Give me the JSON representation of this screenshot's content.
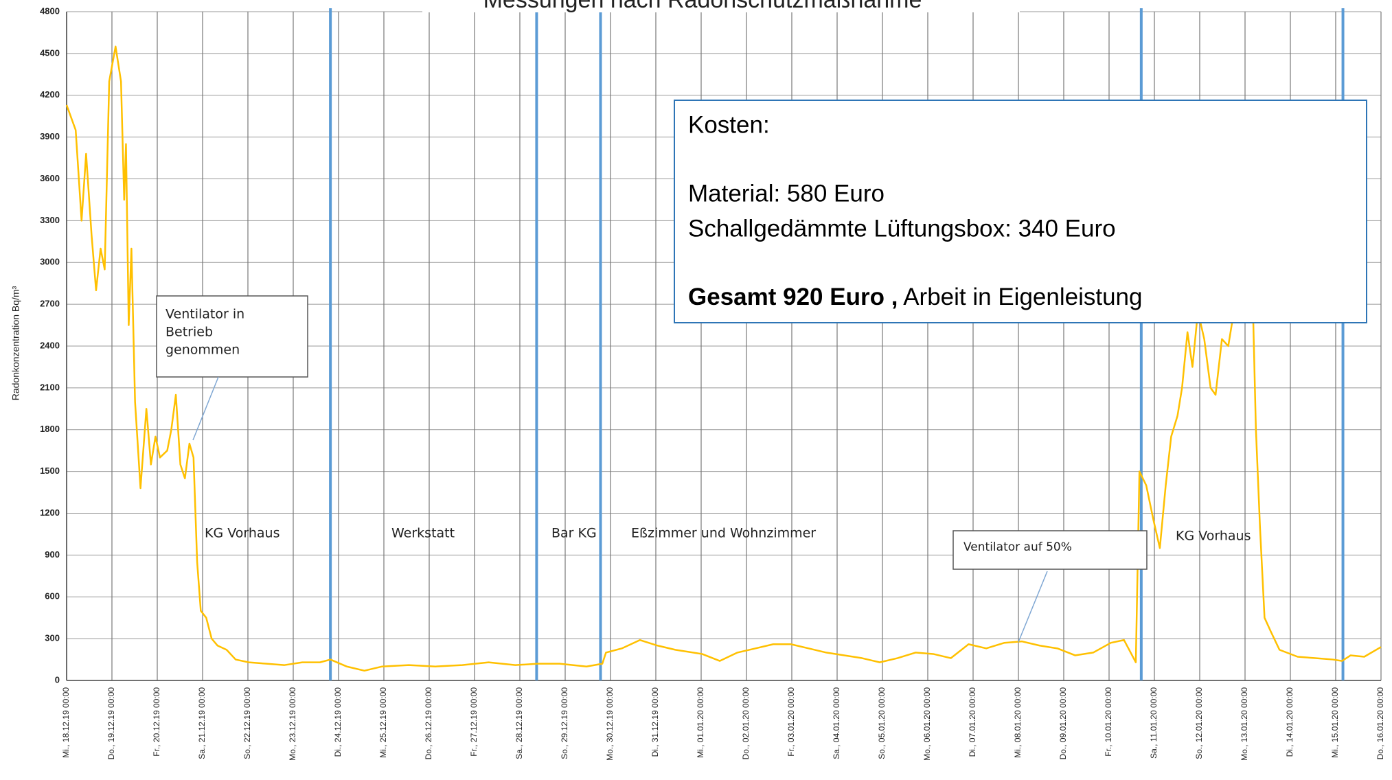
{
  "chart_data": {
    "type": "line",
    "title": "Messungen nach Radonschutzmaßnahme",
    "y_label": "Radonkonzentration Bq/m³",
    "xlim": [
      0,
      29
    ],
    "xticks": [
      {
        "value": 0,
        "label": "Mi., 18.12.19 00:00"
      },
      {
        "value": 1,
        "label": "Do., 19.12.19 00:00"
      },
      {
        "value": 2,
        "label": "Fr., 20.12.19 00:00"
      },
      {
        "value": 3,
        "label": "Sa., 21.12.19 00:00"
      },
      {
        "value": 4,
        "label": "So., 22.12.19 00:00"
      },
      {
        "value": 5,
        "label": "Mo., 23.12.19 00:00"
      },
      {
        "value": 6,
        "label": "Di., 24.12.19 00:00"
      },
      {
        "value": 7,
        "label": "Mi., 25.12.19 00:00"
      },
      {
        "value": 8,
        "label": "Do., 26.12.19 00:00"
      },
      {
        "value": 9,
        "label": "Fr., 27.12.19 00:00"
      },
      {
        "value": 10,
        "label": "Sa., 28.12.19 00:00"
      },
      {
        "value": 11,
        "label": "So., 29.12.19 00:00"
      },
      {
        "value": 12,
        "label": "Mo., 30.12.19 00:00"
      },
      {
        "value": 13,
        "label": "Di., 31.12.19 00:00"
      },
      {
        "value": 14,
        "label": "Mi., 01.01.20 00:00"
      },
      {
        "value": 15,
        "label": "Do., 02.01.20 00:00"
      },
      {
        "value": 16,
        "label": "Fr., 03.01.20 00:00"
      },
      {
        "value": 17,
        "label": "Sa., 04.01.20 00:00"
      },
      {
        "value": 18,
        "label": "So., 05.01.20 00:00"
      },
      {
        "value": 19,
        "label": "Mo., 06.01.20 00:00"
      },
      {
        "value": 20,
        "label": "Di., 07.01.20 00:00"
      },
      {
        "value": 21,
        "label": "Mi., 08.01.20 00:00"
      },
      {
        "value": 22,
        "label": "Do., 09.01.20 00:00"
      },
      {
        "value": 23,
        "label": "Fr., 10.01.20 00:00"
      },
      {
        "value": 24,
        "label": "Sa., 11.01.20 00:00"
      },
      {
        "value": 25,
        "label": "So., 12.01.20 00:00"
      },
      {
        "value": 26,
        "label": "Mo., 13.01.20 00:00"
      },
      {
        "value": 27,
        "label": "Di., 14.01.20 00:00"
      },
      {
        "value": 28,
        "label": "Mi., 15.01.20 00:00"
      },
      {
        "value": 29,
        "label": "Do., 16.01.20 00:00"
      }
    ],
    "ylim": [
      0,
      4800
    ],
    "yticks": [
      0,
      300,
      600,
      900,
      1200,
      1500,
      1800,
      2100,
      2400,
      2700,
      3000,
      3300,
      3600,
      3900,
      4200,
      4500,
      4800
    ],
    "grid": true,
    "series": [
      {
        "color": "#ffc000",
        "x": [
          0,
          0.2,
          0.33,
          0.43,
          0.55,
          0.65,
          0.75,
          0.84,
          0.94,
          1.08,
          1.2,
          1.27,
          1.31,
          1.37,
          1.43,
          1.51,
          1.63,
          1.76,
          1.86,
          1.96,
          2.06,
          2.22,
          2.31,
          2.41,
          2.51,
          2.61,
          2.71,
          2.8,
          2.88,
          2.96,
          3.08,
          3.2,
          3.33,
          3.53,
          3.73,
          4.02,
          4.41,
          4.8,
          5.2,
          5.59,
          5.82,
          6.18,
          6.57,
          6.96,
          7.55,
          8.14,
          8.73,
          9.31,
          9.9,
          10.39,
          10.88,
          11.47,
          11.82,
          11.9,
          12.25,
          12.65,
          13.04,
          13.43,
          14.02,
          14.41,
          14.8,
          15.2,
          15.59,
          15.98,
          16.37,
          16.76,
          17.16,
          17.55,
          17.94,
          18.33,
          18.73,
          19.12,
          19.51,
          19.9,
          20.29,
          20.69,
          21.08,
          21.47,
          21.86,
          22.25,
          22.65,
          23.04,
          23.33,
          23.59,
          23.67,
          23.82,
          23.98,
          24.12,
          24.25,
          24.37,
          24.51,
          24.61,
          24.73,
          24.84,
          24.96,
          25.1,
          25.24,
          25.35,
          25.49,
          25.63,
          25.73,
          26.18,
          26.24,
          26.33,
          26.43,
          26.57,
          26.76,
          27.16,
          27.55,
          27.94,
          28.14,
          28.33,
          28.63,
          29
        ],
        "values": [
          4130,
          3950,
          3300,
          3780,
          3200,
          2800,
          3100,
          2950,
          4300,
          4550,
          4300,
          3450,
          3850,
          2550,
          3100,
          2000,
          1380,
          1950,
          1550,
          1750,
          1600,
          1650,
          1800,
          2050,
          1550,
          1450,
          1700,
          1600,
          850,
          500,
          450,
          300,
          250,
          220,
          150,
          130,
          120,
          110,
          130,
          130,
          150,
          100,
          70,
          100,
          110,
          100,
          110,
          130,
          110,
          120,
          120,
          100,
          120,
          200,
          230,
          290,
          250,
          220,
          190,
          140,
          200,
          230,
          260,
          260,
          230,
          200,
          180,
          160,
          130,
          160,
          200,
          190,
          160,
          260,
          230,
          270,
          280,
          250,
          230,
          180,
          200,
          270,
          290,
          130,
          1500,
          1400,
          1150,
          950,
          1400,
          1750,
          1900,
          2100,
          2500,
          2250,
          2650,
          2450,
          2100,
          2050,
          2450,
          2400,
          2600,
          2600,
          1800,
          1100,
          450,
          350,
          220,
          170,
          160,
          150,
          140,
          180,
          170,
          240
        ]
      }
    ],
    "markers": {
      "color": "#5b9bd5",
      "x": [
        5.82,
        10.37,
        11.78,
        23.71,
        28.16
      ]
    },
    "annotations": [
      "KG Vorhaus",
      "Werkstatt",
      "Bar KG",
      "Eßzimmer und Wohnzimmer",
      "KG Vorhaus"
    ],
    "callouts": [
      {
        "lines": [
          "Ventilator in",
          "Betrieb",
          "genommen"
        ]
      },
      {
        "lines": [
          "Ventilator auf 50%"
        ]
      }
    ]
  },
  "cost_box": {
    "heading": "Kosten:",
    "lines": [
      "Material: 580 Euro",
      "Schallgedämmte Lüftungsbox: 340 Euro"
    ],
    "total_bold": "Gesamt 920 Euro ,",
    "total_rest": " Arbeit in Eigenleistung"
  }
}
